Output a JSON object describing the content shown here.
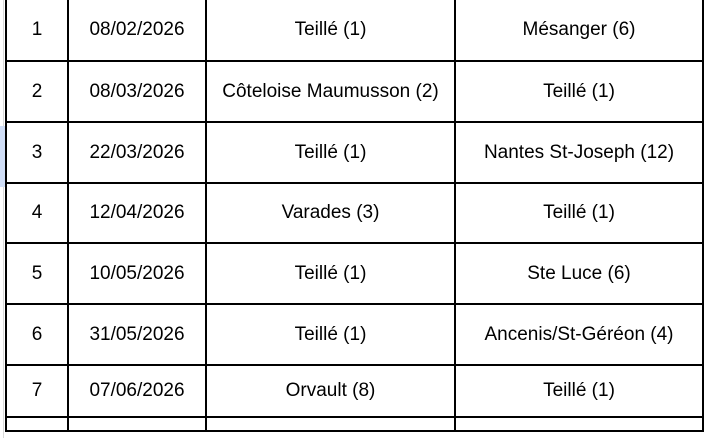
{
  "app": {
    "description_label": "spreadsheet fixture schedule table"
  },
  "colors": {
    "highlight_yellow": "#fdf0cc",
    "active_row_indicator_blue": "#cfddf6",
    "grid_black": "#000000",
    "gutter_gray": "#d9d9d9"
  },
  "table": {
    "rows": [
      {
        "num": "1",
        "date": "08/02/2026",
        "home": "Teillé (1)",
        "away": "Mésanger (6)",
        "home_hl": true,
        "away_hl": false
      },
      {
        "num": "2",
        "date": "08/03/2026",
        "home": "Côteloise Maumusson (2)",
        "away": "Teillé (1)",
        "home_hl": false,
        "away_hl": true
      },
      {
        "num": "3",
        "date": "22/03/2026",
        "home": "Teillé (1)",
        "away": "Nantes St-Joseph (12)",
        "home_hl": true,
        "away_hl": false
      },
      {
        "num": "4",
        "date": "12/04/2026",
        "home": "Varades (3)",
        "away": "Teillé (1)",
        "home_hl": false,
        "away_hl": true
      },
      {
        "num": "5",
        "date": "10/05/2026",
        "home": "Teillé (1)",
        "away": "Ste Luce (6)",
        "home_hl": true,
        "away_hl": false
      },
      {
        "num": "6",
        "date": "31/05/2026",
        "home": "Teillé (1)",
        "away": "Ancenis/St-Géréon (4)",
        "home_hl": true,
        "away_hl": false
      },
      {
        "num": "7",
        "date": "07/06/2026",
        "home": "Orvault (8)",
        "away": "Teillé (1)",
        "home_hl": false,
        "away_hl": true
      }
    ],
    "partial_next_row": {
      "num": "",
      "date": "",
      "home": "",
      "away": "",
      "home_hl": false,
      "away_hl": true
    }
  }
}
